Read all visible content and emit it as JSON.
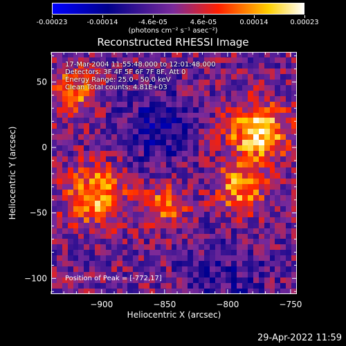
{
  "colorbar": {
    "tick_labels": [
      "-0.00023",
      "-0.00014",
      "-4.6e-05",
      "4.6e-05",
      "0.00014",
      "0.00023"
    ],
    "units": "(photons cm⁻² s⁻¹ asec⁻²)",
    "range": [
      -0.00023,
      0.00023
    ],
    "colors": [
      "#0000ff",
      "#00008b",
      "#7a2a9a",
      "#ff2000",
      "#ffd000",
      "#ffffff"
    ]
  },
  "chart_data": {
    "type": "heatmap",
    "title": "Reconstructed RHESSI Image",
    "xlabel": "Heliocentric X (arcsec)",
    "ylabel": "Heliocentric Y (arcsec)",
    "xlim": [
      -940,
      -745
    ],
    "ylim": [
      -112,
      73
    ],
    "x_ticks": [
      -900,
      -850,
      -800,
      -750
    ],
    "x_tick_labels": [
      "−900",
      "−850",
      "−800",
      "−750"
    ],
    "y_ticks": [
      -100,
      -50,
      0,
      50
    ],
    "y_tick_labels": [
      "−100",
      "−50",
      "0",
      "50"
    ],
    "info_lines": [
      "17-Mar-2004 11:55:48.000 to 12:01:48.000",
      "Detectors: 3F 4F 5F 6F 7F 8F, Att 0",
      "Energy Range: 25.0 - 50.0 keV",
      "Clean     Total counts: 4.81E+03"
    ],
    "peak_text": "Position of Peak = [-772,17]",
    "peak_position": [
      -772,
      17
    ]
  },
  "footer": {
    "date": "29-Apr-2022 11:59"
  }
}
